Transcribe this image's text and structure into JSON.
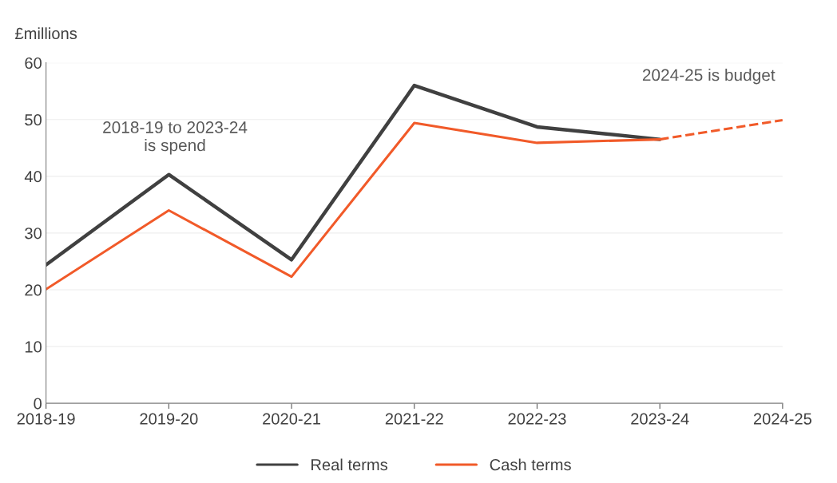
{
  "chart_data": {
    "type": "line",
    "ylabel": "£millions",
    "categories": [
      "2018-19",
      "2019-20",
      "2020-21",
      "2021-22",
      "2022-23",
      "2023-24",
      "2024-25"
    ],
    "series": [
      {
        "name": "Real terms",
        "color": "#404040",
        "values": [
          24.4,
          40.3,
          25.3,
          56.0,
          48.7,
          46.5,
          null
        ]
      },
      {
        "name": "Cash terms",
        "color": "#f15a29",
        "values": [
          20.1,
          34.0,
          22.3,
          49.4,
          45.9,
          46.5,
          null
        ]
      },
      {
        "color": "#f15a29",
        "line_style": "dashed",
        "values": [
          null,
          null,
          null,
          null,
          null,
          46.5,
          49.9
        ]
      }
    ],
    "ylim": [
      0,
      60
    ],
    "yticks": [
      0,
      10,
      20,
      30,
      40,
      50,
      60
    ],
    "grid": "y",
    "legend": "bottom",
    "line_style": "solid",
    "marker": "none",
    "annotations": [
      "2018-19 to 2023-24\nis spend",
      "2024-25 is budget"
    ]
  }
}
